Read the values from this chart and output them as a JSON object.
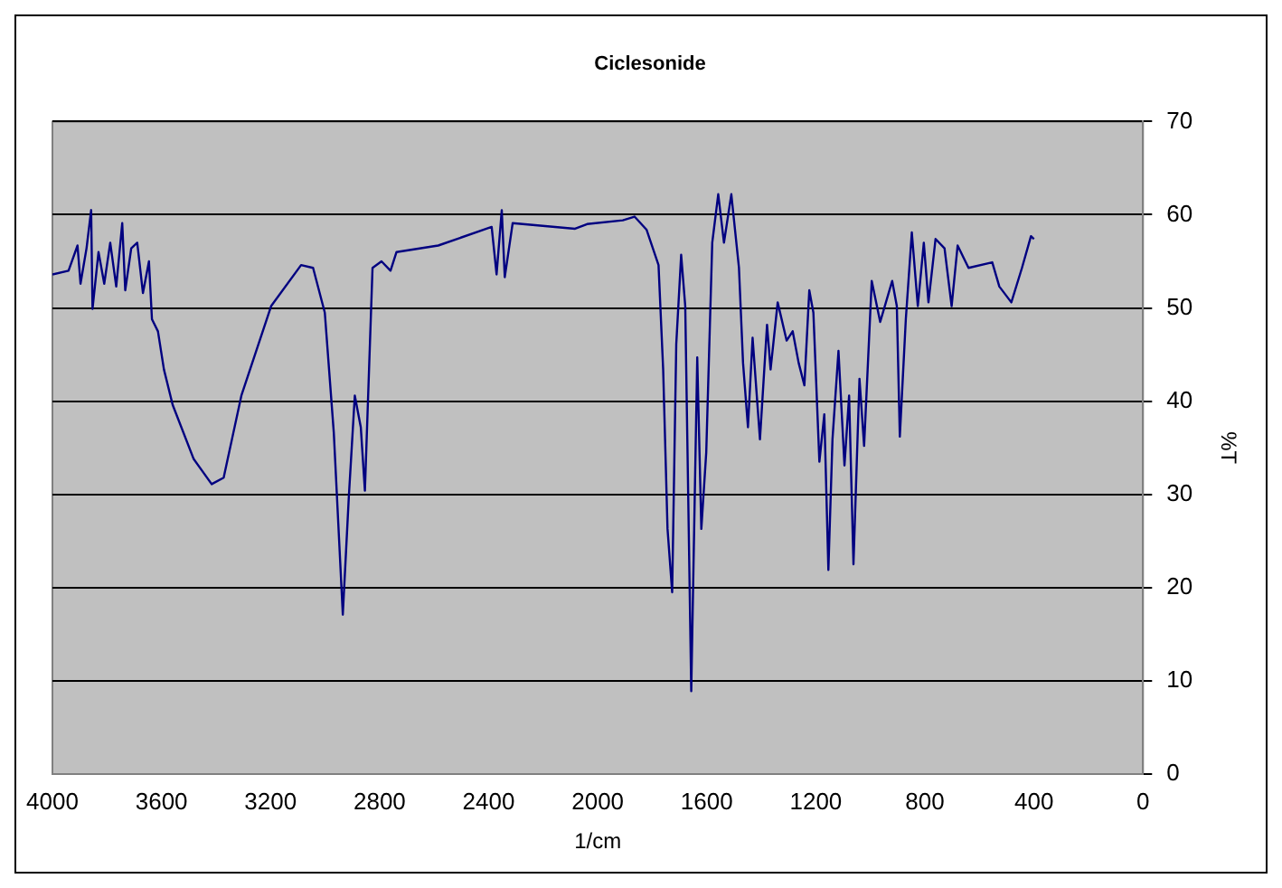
{
  "chart_data": {
    "type": "line",
    "title": "Ciclesonide",
    "xlabel": "1/cm",
    "ylabel": "%T",
    "xlim": [
      4000,
      0
    ],
    "xticks": [
      4000,
      3600,
      3200,
      2800,
      2400,
      2000,
      1600,
      1200,
      800,
      400,
      0
    ],
    "ylim": [
      0,
      70
    ],
    "yticks": [
      0,
      10,
      20,
      30,
      40,
      50,
      60,
      70
    ],
    "grid": "y",
    "legend": false,
    "marker": "none",
    "line_style": "solid",
    "series": [
      {
        "color": "#000080",
        "x": [
          4000,
          3941,
          3908,
          3897,
          3875,
          3858,
          3853,
          3831,
          3810,
          3788,
          3766,
          3744,
          3733,
          3711,
          3689,
          3668,
          3646,
          3635,
          3613,
          3591,
          3559,
          3482,
          3416,
          3372,
          3307,
          3198,
          3088,
          3044,
          3001,
          2968,
          2935,
          2913,
          2891,
          2869,
          2854,
          2826,
          2793,
          2760,
          2738,
          2585,
          2389,
          2371,
          2352,
          2341,
          2312,
          2083,
          2039,
          1908,
          1865,
          1821,
          1777,
          1760,
          1744,
          1727,
          1712,
          1694,
          1679,
          1657,
          1635,
          1620,
          1602,
          1580,
          1558,
          1537,
          1510,
          1482,
          1467,
          1449,
          1432,
          1405,
          1379,
          1366,
          1340,
          1307,
          1285,
          1263,
          1242,
          1224,
          1209,
          1187,
          1169,
          1154,
          1139,
          1117,
          1095,
          1078,
          1062,
          1040,
          1023,
          995,
          964,
          920,
          903,
          892,
          870,
          848,
          826,
          804,
          787,
          761,
          728,
          702,
          680,
          640,
          553,
          527,
          483,
          444,
          411,
          400
        ],
        "values": [
          53.6,
          54,
          56.7,
          52.6,
          56.4,
          60.5,
          49.9,
          56,
          52.6,
          57,
          52.3,
          59.1,
          51.9,
          56.4,
          57,
          51.6,
          55,
          48.8,
          47.5,
          43.4,
          39.6,
          33.8,
          31.1,
          31.8,
          40.6,
          50.2,
          54.6,
          54.3,
          49.5,
          36.6,
          17.1,
          29.7,
          40.6,
          37.2,
          30.4,
          54.3,
          55,
          54,
          56,
          56.7,
          58.7,
          53.6,
          60.5,
          53.3,
          59.1,
          58.5,
          59,
          59.4,
          59.8,
          58.4,
          54.6,
          43.4,
          26.3,
          19.5,
          46.1,
          55.7,
          50.2,
          8.9,
          44.7,
          26.3,
          34.5,
          57,
          62.2,
          57,
          62.2,
          54.3,
          44.1,
          37.2,
          46.8,
          35.9,
          48.2,
          43.4,
          50.6,
          46.5,
          47.5,
          44.1,
          41.7,
          51.9,
          49.5,
          33.5,
          38.6,
          21.9,
          35.9,
          45.4,
          33.1,
          40.6,
          22.5,
          42.4,
          35.2,
          52.9,
          48.5,
          52.9,
          50.2,
          36.2,
          48.8,
          58.1,
          50.2,
          57,
          50.6,
          57.4,
          56.4,
          50.2,
          56.7,
          54.3,
          54.9,
          52.3,
          50.6,
          54.3,
          57.7,
          57.4
        ]
      }
    ]
  }
}
